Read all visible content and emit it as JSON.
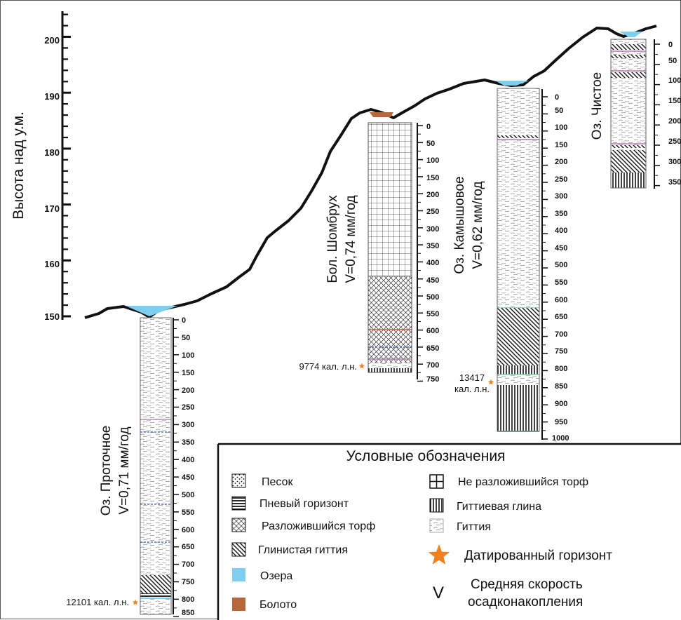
{
  "y_axis": {
    "label": "Высота над у.м.",
    "ticks": [
      "150",
      "160",
      "170",
      "180",
      "190",
      "200"
    ]
  },
  "columns": [
    {
      "id": "protochnoe",
      "name": "Оз. Проточное",
      "rate": "V=0,71 мм/год",
      "depth_ticks": [
        "0",
        "50",
        "100",
        "150",
        "200",
        "250",
        "300",
        "350",
        "400",
        "450",
        "500",
        "550",
        "600",
        "650",
        "700",
        "750",
        "800",
        "850"
      ],
      "date_label": "12101 кал. л.н."
    },
    {
      "id": "shombrukh",
      "name": "Бол. Шомбрух",
      "rate": "V=0,74 мм/год",
      "depth_ticks": [
        "0",
        "50",
        "100",
        "150",
        "200",
        "250",
        "300",
        "350",
        "400",
        "450",
        "500",
        "550",
        "600",
        "650",
        "700",
        "750"
      ],
      "date_label": "9774 кал. л.н."
    },
    {
      "id": "kamyshovoe",
      "name": "Оз. Камышовое",
      "rate": "V=0,62 мм/год",
      "depth_ticks": [
        "0",
        "50",
        "100",
        "150",
        "200",
        "250",
        "300",
        "350",
        "400",
        "450",
        "500",
        "550",
        "600",
        "650",
        "700",
        "750",
        "800",
        "850",
        "900",
        "950",
        "1000"
      ],
      "date_label_line1": "13417",
      "date_label_line2": "кал. л.н."
    },
    {
      "id": "chistoe",
      "name": "Оз. Чистое",
      "rate": "",
      "depth_ticks": [
        "0",
        "50",
        "100",
        "150",
        "200",
        "250",
        "300",
        "350"
      ]
    }
  ],
  "legend": {
    "title": "Условные обозначения",
    "items": {
      "sand": "Песок",
      "stump": "Пневый горизонт",
      "decomposed_peat": "Разложившийся торф",
      "clay_gyttja": "Глинистая гиттия",
      "lakes": "Озера",
      "bog": "Болото",
      "undecomposed_peat": "Не разложившийся торф",
      "gyttja_clay": "Гиттиевая глина",
      "gyttja": "Гиттия",
      "dated_horizon": "Датированный горизонт",
      "v_symbol": "V",
      "rate_line1": "Средняя скорость",
      "rate_line2": "осадконакопления"
    }
  },
  "colors": {
    "lake": "#7ecfef",
    "bog": "#b8673a",
    "star": "#f08020",
    "gyttja_dash": "#777777"
  }
}
